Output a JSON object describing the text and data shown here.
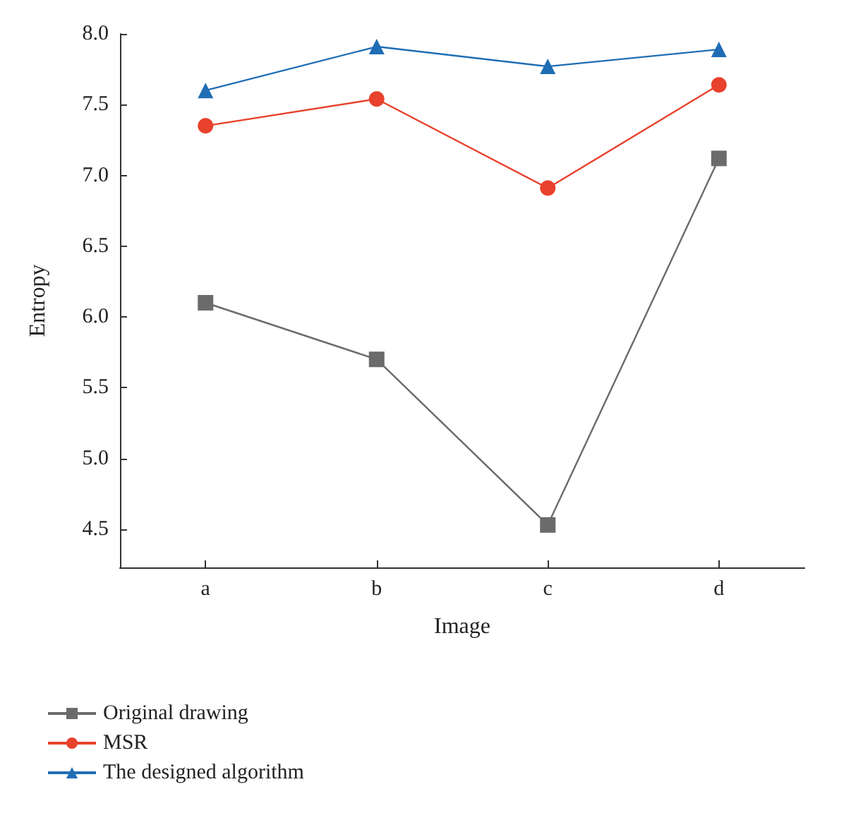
{
  "chart_data": {
    "type": "line",
    "xlabel": "Image",
    "ylabel": "Entropy",
    "categories": [
      "a",
      "b",
      "c",
      "d"
    ],
    "series": [
      {
        "name": "Original drawing",
        "color": "#6b6b6b",
        "marker": "square",
        "values": [
          6.1,
          5.7,
          4.53,
          7.12
        ]
      },
      {
        "name": "MSR",
        "color": "#e8412c",
        "marker": "circle",
        "values": [
          7.35,
          7.54,
          6.91,
          7.64
        ]
      },
      {
        "name": "The designed algorithm",
        "color": "#1f6db5",
        "marker": "triangle",
        "values": [
          7.6,
          7.91,
          7.77,
          7.89
        ]
      }
    ],
    "ylim": [
      4.23,
      8.0
    ],
    "yticks": [
      {
        "value": 4.5,
        "label": "4.5"
      },
      {
        "value": 5.0,
        "label": "5.0"
      },
      {
        "value": 5.5,
        "label": "5.5"
      },
      {
        "value": 6.0,
        "label": "6.0"
      },
      {
        "value": 6.5,
        "label": "6.5"
      },
      {
        "value": 7.0,
        "label": "7.0"
      },
      {
        "value": 7.5,
        "label": "7.5"
      },
      {
        "value": 8.0,
        "label": "8.0"
      }
    ],
    "grid": false,
    "legend": "bottom left",
    "line_style": "solid"
  }
}
